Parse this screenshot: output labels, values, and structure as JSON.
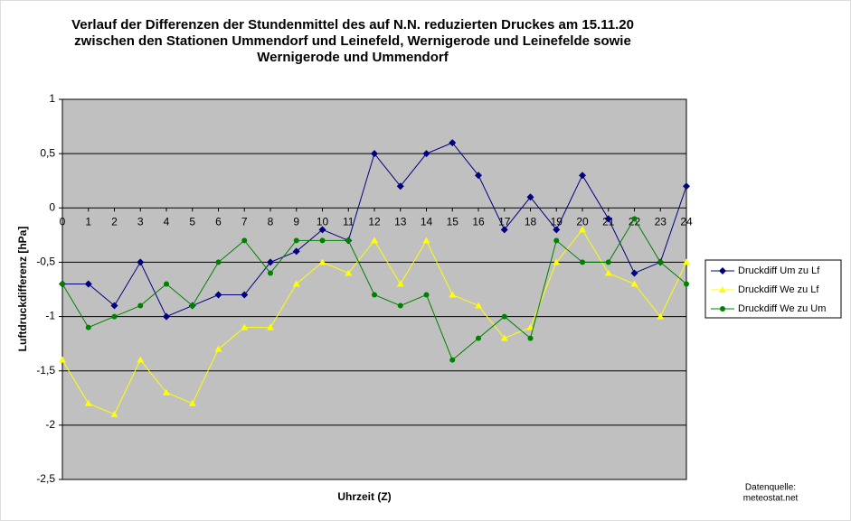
{
  "chart_data": {
    "type": "line",
    "title": [
      "Verlauf der Differenzen der Stundenmittel des auf N.N. reduzierten Druckes am 15.11.20",
      "zwischen den Stationen Ummendorf und Leinefeld, Wernigerode und Leinefelde sowie",
      "Wernigerode und Ummendorf"
    ],
    "xlabel": "Uhrzeit (Z)",
    "ylabel": "Luftdruckdifferenz [hPa]",
    "source": [
      "Datenquelle:",
      "meteostat.net"
    ],
    "x": [
      0,
      1,
      2,
      3,
      4,
      5,
      6,
      7,
      8,
      9,
      10,
      11,
      12,
      13,
      14,
      15,
      16,
      17,
      18,
      19,
      20,
      21,
      22,
      23,
      24
    ],
    "xlim": [
      0,
      24
    ],
    "xticks": [
      0,
      1,
      2,
      3,
      4,
      5,
      6,
      7,
      8,
      9,
      10,
      11,
      12,
      13,
      14,
      15,
      16,
      17,
      18,
      19,
      20,
      21,
      22,
      23,
      24
    ],
    "ylim": [
      -2.5,
      1
    ],
    "yticks": [
      {
        "value": -2.5,
        "label": "-2,5"
      },
      -2,
      {
        "value": -1.5,
        "label": "-1,5"
      },
      -1,
      {
        "value": -0.5,
        "label": "-0,5"
      },
      0,
      {
        "value": 0.5,
        "label": "0,5"
      },
      1
    ],
    "grid": true,
    "legend": "right",
    "series": [
      {
        "name": "Druckdiff Um zu Lf",
        "color": "#000080",
        "marker": "diamond",
        "values": [
          -0.7,
          -0.7,
          -0.9,
          -0.5,
          -1.0,
          -0.9,
          -0.8,
          -0.8,
          -0.5,
          -0.4,
          -0.2,
          -0.3,
          0.5,
          0.2,
          0.5,
          0.6,
          0.3,
          -0.2,
          0.1,
          -0.2,
          0.3,
          -0.1,
          -0.6,
          -0.5,
          0.2
        ]
      },
      {
        "name": "Druckdiff We zu Lf",
        "color": "#ffff00",
        "marker": "triangle",
        "values": [
          -1.4,
          -1.8,
          -1.9,
          -1.4,
          -1.7,
          -1.8,
          -1.3,
          -1.1,
          -1.1,
          -0.7,
          -0.5,
          -0.6,
          -0.3,
          -0.7,
          -0.3,
          -0.8,
          -0.9,
          -1.2,
          -1.1,
          -0.5,
          -0.2,
          -0.6,
          -0.7,
          -1.0,
          -0.5
        ]
      },
      {
        "name": "Druckdiff We zu Um",
        "color": "#008000",
        "marker": "circle",
        "values": [
          -0.7,
          -1.1,
          -1.0,
          -0.9,
          -0.7,
          -0.9,
          -0.5,
          -0.3,
          -0.6,
          -0.3,
          -0.3,
          -0.3,
          -0.8,
          -0.9,
          -0.8,
          -1.4,
          -1.2,
          -1.0,
          -1.2,
          -0.3,
          -0.5,
          -0.5,
          -0.1,
          -0.5,
          -0.7
        ]
      }
    ]
  }
}
